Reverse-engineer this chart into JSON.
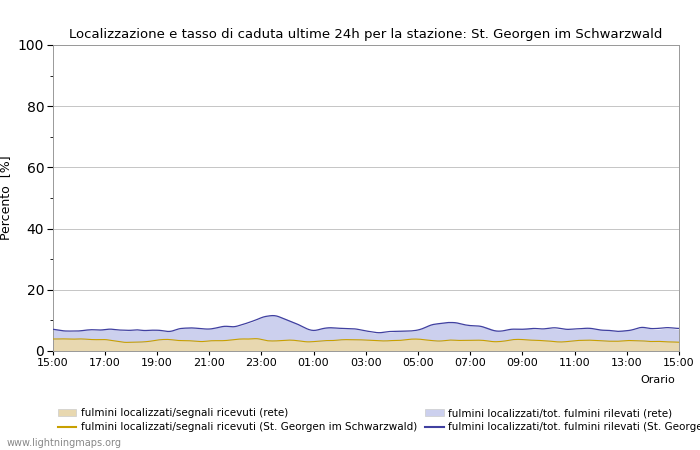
{
  "title": "Localizzazione e tasso di caduta ultime 24h per la stazione: St. Georgen im Schwarzwald",
  "ylabel": "Percento  [%]",
  "ylim": [
    0,
    100
  ],
  "yticks_major": [
    0,
    20,
    40,
    60,
    80,
    100
  ],
  "yticks_minor": [
    10,
    30,
    50,
    70,
    90
  ],
  "xtick_labels": [
    "15:00",
    "17:00",
    "19:00",
    "21:00",
    "23:00",
    "01:00",
    "03:00",
    "05:00",
    "07:00",
    "09:00",
    "11:00",
    "13:00",
    "15:00"
  ],
  "fill_color_rete": "#e8d8b0",
  "fill_color_loc": "#ccd0ee",
  "line_color_rete": "#c8a000",
  "line_color_loc": "#4040a0",
  "background_color": "#ffffff",
  "plot_bg_color": "#ffffff",
  "grid_color": "#bbbbbb",
  "watermark": "www.lightningmaps.org",
  "n_points": 289,
  "seed": 12345
}
